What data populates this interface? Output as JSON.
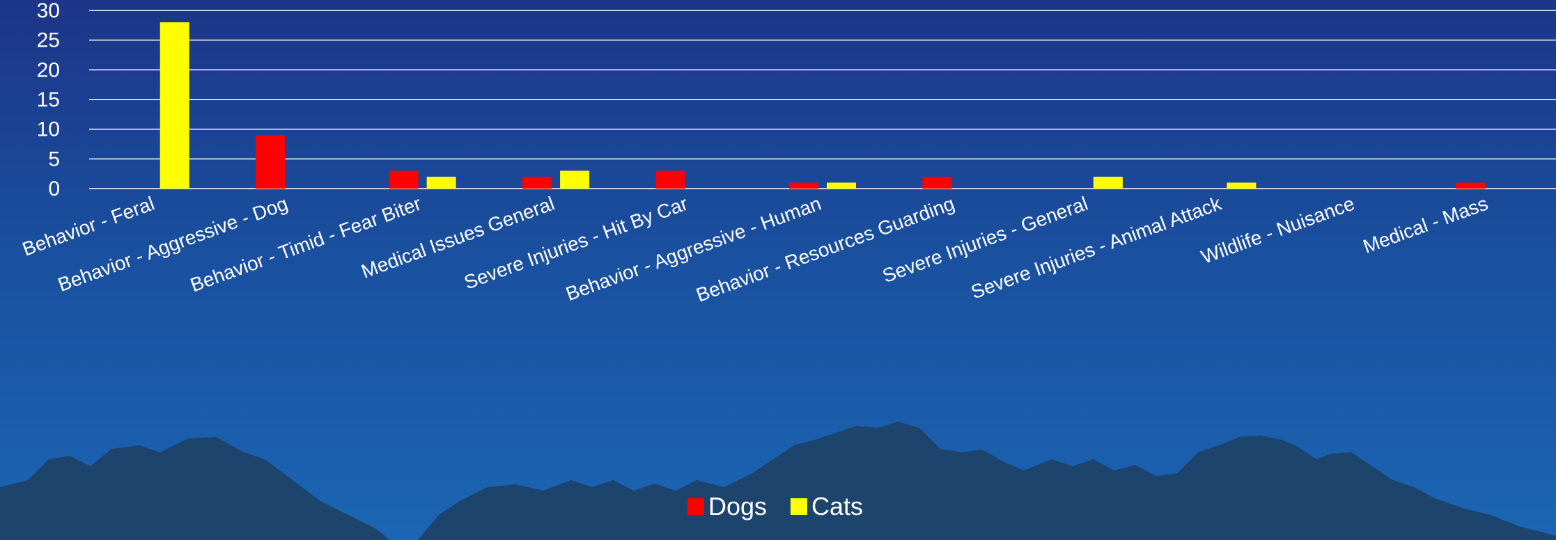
{
  "colors": {
    "background_top": "#1c3588",
    "background_bottom": "#1b66b4",
    "mountains": "#1e4268",
    "gridline": "#ffffff",
    "text": "#ffffff"
  },
  "chart_data": {
    "type": "bar",
    "categories": [
      "Behavior - Feral",
      "Behavior - Aggressive - Dog",
      "Behavior - Timid - Fear Biter",
      "Medical Issues General",
      "Severe Injuries - Hit By Car",
      "Behavior - Aggressive - Human",
      "Behavior - Resources Guarding",
      "Severe Injuries - General",
      "Severe Injuries - Animal Attack",
      "Wildlife - Nuisance",
      "Medical - Mass"
    ],
    "series": [
      {
        "name": "Dogs",
        "color": "#ff0000",
        "values": [
          0,
          9,
          3,
          2,
          3,
          1,
          2,
          0,
          0,
          0,
          1
        ]
      },
      {
        "name": "Cats",
        "color": "#ffff00",
        "values": [
          28,
          0,
          2,
          3,
          0,
          1,
          0,
          2,
          1,
          0,
          0
        ]
      }
    ],
    "yticks": [
      "0",
      "5",
      "10",
      "15",
      "20",
      "25",
      "30"
    ],
    "ylim": [
      0,
      30
    ],
    "grid": true,
    "legend_position": "bottom-center",
    "title": "",
    "xlabel": "",
    "ylabel": ""
  }
}
